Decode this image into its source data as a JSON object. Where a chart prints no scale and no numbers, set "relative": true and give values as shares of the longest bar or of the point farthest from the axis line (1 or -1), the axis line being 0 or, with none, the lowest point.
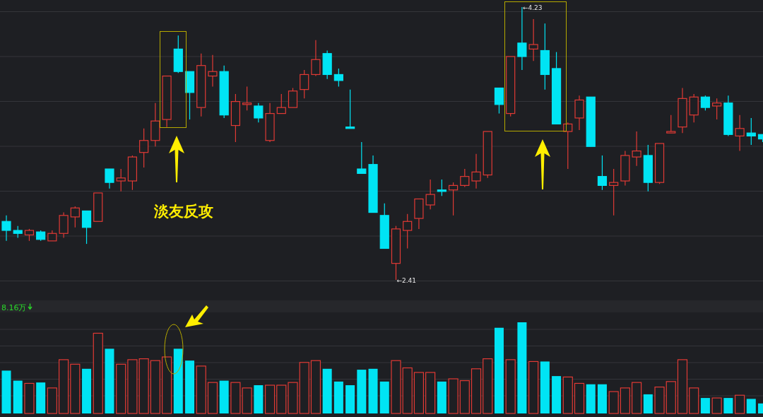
{
  "chart_data": [
    {
      "type": "candlestick",
      "categories": [
        null,
        null,
        null,
        null,
        null,
        null,
        null,
        null,
        null,
        null,
        null,
        null,
        null,
        null,
        null,
        null,
        null,
        null,
        null,
        null,
        null,
        null,
        null,
        null,
        null,
        null,
        null,
        null,
        null,
        null,
        null,
        null,
        null,
        null,
        null,
        null,
        null,
        null,
        null,
        null,
        null,
        null,
        null,
        null,
        null,
        null,
        null,
        null,
        null,
        null,
        null,
        null,
        null,
        null,
        null,
        null,
        null,
        null,
        null,
        null,
        null,
        null,
        null,
        null,
        null,
        null,
        null
      ],
      "ohlc": [
        [
          2.8,
          2.84,
          2.67,
          2.74
        ],
        [
          2.74,
          2.77,
          2.69,
          2.72
        ],
        [
          2.71,
          2.75,
          2.67,
          2.74
        ],
        [
          2.73,
          2.74,
          2.67,
          2.68
        ],
        [
          2.67,
          2.74,
          2.67,
          2.72
        ],
        [
          2.72,
          2.86,
          2.69,
          2.84
        ],
        [
          2.83,
          2.9,
          2.76,
          2.89
        ],
        [
          2.87,
          2.87,
          2.65,
          2.76
        ],
        [
          2.8,
          2.99,
          2.8,
          2.99
        ],
        [
          3.15,
          3.15,
          3.02,
          3.06
        ],
        [
          3.07,
          3.15,
          3.0,
          3.09
        ],
        [
          3.07,
          3.24,
          3.01,
          3.23
        ],
        [
          3.26,
          3.42,
          3.16,
          3.34
        ],
        [
          3.34,
          3.59,
          3.3,
          3.47
        ],
        [
          3.48,
          3.77,
          3.43,
          3.77
        ],
        [
          3.95,
          4.04,
          3.79,
          3.8
        ],
        [
          3.8,
          3.8,
          3.48,
          3.66
        ],
        [
          3.56,
          3.92,
          3.5,
          3.84
        ],
        [
          3.77,
          3.91,
          3.7,
          3.8
        ],
        [
          3.8,
          3.84,
          3.49,
          3.51
        ],
        [
          3.44,
          3.65,
          3.33,
          3.6
        ],
        [
          3.58,
          3.7,
          3.54,
          3.59
        ],
        [
          3.57,
          3.59,
          3.46,
          3.49
        ],
        [
          3.34,
          3.59,
          3.33,
          3.52
        ],
        [
          3.52,
          3.65,
          3.52,
          3.56
        ],
        [
          3.56,
          3.69,
          3.56,
          3.67
        ],
        [
          3.68,
          3.81,
          3.62,
          3.78
        ],
        [
          3.78,
          4.01,
          3.77,
          3.88
        ],
        [
          3.92,
          3.94,
          3.75,
          3.78
        ],
        [
          3.78,
          3.82,
          3.7,
          3.74
        ],
        [
          3.43,
          3.68,
          3.42,
          3.42
        ],
        [
          3.15,
          3.33,
          3.12,
          3.12
        ],
        [
          3.18,
          3.24,
          2.86,
          2.86
        ],
        [
          2.84,
          2.92,
          2.62,
          2.62
        ],
        [
          2.52,
          2.77,
          2.41,
          2.75
        ],
        [
          2.74,
          2.85,
          2.62,
          2.8
        ],
        [
          2.82,
          2.95,
          2.75,
          2.95
        ],
        [
          2.91,
          3.08,
          2.88,
          2.98
        ],
        [
          3.01,
          3.08,
          2.97,
          3.0
        ],
        [
          3.01,
          3.06,
          2.84,
          3.04
        ],
        [
          3.04,
          3.15,
          3.03,
          3.1
        ],
        [
          3.07,
          3.25,
          3.02,
          3.13
        ],
        [
          3.11,
          3.4,
          3.09,
          3.4
        ],
        [
          3.69,
          3.69,
          3.52,
          3.58
        ],
        [
          3.52,
          3.9,
          3.5,
          3.9
        ],
        [
          3.99,
          4.23,
          3.81,
          3.9
        ],
        [
          3.95,
          4.15,
          3.87,
          3.98
        ],
        [
          3.94,
          4.12,
          3.68,
          3.78
        ],
        [
          3.82,
          3.93,
          3.45,
          3.45
        ],
        [
          3.4,
          3.46,
          3.15,
          3.45
        ],
        [
          3.49,
          3.64,
          3.41,
          3.61
        ],
        [
          3.63,
          3.63,
          3.3,
          3.3
        ],
        [
          3.1,
          3.24,
          3.01,
          3.04
        ],
        [
          3.04,
          3.15,
          2.84,
          3.06
        ],
        [
          3.07,
          3.27,
          3.04,
          3.24
        ],
        [
          3.23,
          3.4,
          3.17,
          3.27
        ],
        [
          3.24,
          3.31,
          3.0,
          3.06
        ],
        [
          3.06,
          3.32,
          3.05,
          3.32
        ],
        [
          3.39,
          3.51,
          3.39,
          3.4
        ],
        [
          3.43,
          3.69,
          3.39,
          3.62
        ],
        [
          3.51,
          3.65,
          3.46,
          3.63
        ],
        [
          3.63,
          3.64,
          3.54,
          3.56
        ],
        [
          3.57,
          3.62,
          3.48,
          3.59
        ],
        [
          3.59,
          3.64,
          3.37,
          3.38
        ],
        [
          3.37,
          3.51,
          3.27,
          3.42
        ],
        [
          3.39,
          3.49,
          3.31,
          3.37
        ],
        [
          3.38,
          3.38,
          3.33,
          3.35
        ]
      ],
      "colors": [
        "#00e4f4",
        "#00e4f4",
        "#e03a35",
        "#00e4f4",
        "#e03a35",
        "#e03a35",
        "#e03a35",
        "#00e4f4",
        "#e03a35",
        "#00e4f4",
        "#e03a35",
        "#e03a35",
        "#e03a35",
        "#e03a35",
        "#e03a35",
        "#00e4f4",
        "#00e4f4",
        "#e03a35",
        "#e03a35",
        "#00e4f4",
        "#e03a35",
        "#e03a35",
        "#00e4f4",
        "#e03a35",
        "#e03a35",
        "#e03a35",
        "#e03a35",
        "#e03a35",
        "#00e4f4",
        "#00e4f4",
        "#00e4f4",
        "#00e4f4",
        "#00e4f4",
        "#00e4f4",
        "#e03a35",
        "#e03a35",
        "#e03a35",
        "#e03a35",
        "#00e4f4",
        "#e03a35",
        "#e03a35",
        "#e03a35",
        "#e03a35",
        "#00e4f4",
        "#e03a35",
        "#00e4f4",
        "#e03a35",
        "#00e4f4",
        "#00e4f4",
        "#e03a35",
        "#e03a35",
        "#00e4f4",
        "#00e4f4",
        "#e03a35",
        "#e03a35",
        "#e03a35",
        "#00e4f4",
        "#e03a35",
        "#e03a35",
        "#e03a35",
        "#e03a35",
        "#00e4f4",
        "#e03a35",
        "#00e4f4",
        "#e03a35",
        "#00e4f4",
        "#00e4f4"
      ],
      "grid": true,
      "annotations": [
        "←4.23",
        "←2.41",
        "淡友反攻"
      ]
    },
    {
      "type": "bar",
      "relative": true,
      "categories": [
        null,
        null,
        null,
        null,
        null,
        null,
        null,
        null,
        null,
        null,
        null,
        null,
        null,
        null,
        null,
        null,
        null,
        null,
        null,
        null,
        null,
        null,
        null,
        null,
        null,
        null,
        null,
        null,
        null,
        null,
        null,
        null,
        null,
        null,
        null,
        null,
        null,
        null,
        null,
        null,
        null,
        null,
        null,
        null,
        null,
        null,
        null,
        null,
        null,
        null,
        null,
        null,
        null,
        null,
        null,
        null,
        null,
        null,
        null,
        null,
        null,
        null,
        null,
        null,
        null,
        null,
        null
      ],
      "values": [
        0.47,
        0.36,
        0.33,
        0.34,
        0.28,
        0.59,
        0.54,
        0.49,
        0.88,
        0.71,
        0.54,
        0.59,
        0.6,
        0.58,
        0.62,
        0.71,
        0.58,
        0.52,
        0.34,
        0.36,
        0.34,
        0.28,
        0.31,
        0.31,
        0.31,
        0.34,
        0.56,
        0.58,
        0.49,
        0.35,
        0.31,
        0.48,
        0.49,
        0.35,
        0.58,
        0.5,
        0.45,
        0.45,
        0.35,
        0.38,
        0.36,
        0.49,
        0.6,
        0.94,
        0.59,
        1,
        0.57,
        0.57,
        0.41,
        0.4,
        0.33,
        0.32,
        0.32,
        0.24,
        0.28,
        0.34,
        0.21,
        0.29,
        0.35,
        0.59,
        0.28,
        0.17,
        0.17,
        0.17,
        0.2,
        0.16,
        0.11
      ],
      "colors": [
        "#00e4f4",
        "#00e4f4",
        "#e03a35",
        "#00e4f4",
        "#e03a35",
        "#e03a35",
        "#e03a35",
        "#00e4f4",
        "#e03a35",
        "#00e4f4",
        "#e03a35",
        "#e03a35",
        "#e03a35",
        "#e03a35",
        "#e03a35",
        "#00e4f4",
        "#00e4f4",
        "#e03a35",
        "#e03a35",
        "#00e4f4",
        "#e03a35",
        "#e03a35",
        "#00e4f4",
        "#e03a35",
        "#e03a35",
        "#e03a35",
        "#e03a35",
        "#e03a35",
        "#00e4f4",
        "#00e4f4",
        "#00e4f4",
        "#00e4f4",
        "#00e4f4",
        "#00e4f4",
        "#e03a35",
        "#e03a35",
        "#e03a35",
        "#e03a35",
        "#00e4f4",
        "#e03a35",
        "#e03a35",
        "#e03a35",
        "#e03a35",
        "#00e4f4",
        "#e03a35",
        "#00e4f4",
        "#e03a35",
        "#00e4f4",
        "#00e4f4",
        "#e03a35",
        "#e03a35",
        "#00e4f4",
        "#00e4f4",
        "#e03a35",
        "#e03a35",
        "#e03a35",
        "#00e4f4",
        "#e03a35",
        "#e03a35",
        "#e03a35",
        "#e03a35",
        "#00e4f4",
        "#e03a35",
        "#00e4f4",
        "#e03a35",
        "#00e4f4",
        "#00e4f4"
      ],
      "grid": true,
      "annotations": [
        "8.16万"
      ]
    }
  ]
}
